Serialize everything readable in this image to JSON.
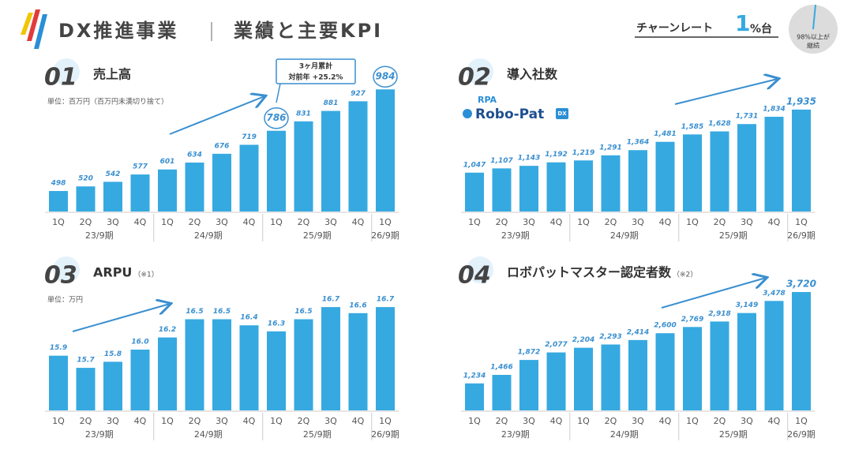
{
  "header": {
    "title": "DX推進事業",
    "subtitle": "業績と主要KPI"
  },
  "churn": {
    "label": "チャーンレート",
    "value": 1,
    "unit": "%台",
    "note": [
      "98%以上が",
      "継続"
    ]
  },
  "logo": {
    "top": "RPA",
    "name": "Robo-Pat",
    "badge": "DX"
  },
  "chart_data": [
    {
      "type": "bar",
      "number": "01",
      "title": "売上高",
      "note": "単位：百万円（百万円未満切り捨て）",
      "callout": [
        "3ヶ月累計",
        "対前年 +25.2%"
      ],
      "categories": [
        "1Q",
        "2Q",
        "3Q",
        "4Q",
        "1Q",
        "2Q",
        "3Q",
        "4Q",
        "1Q",
        "2Q",
        "3Q",
        "4Q",
        "1Q"
      ],
      "groups": [
        "23/9期",
        "24/9期",
        "25/9期",
        "26/9期"
      ],
      "values": [
        498,
        520,
        542,
        577,
        601,
        634,
        676,
        719,
        786,
        831,
        881,
        927,
        984
      ],
      "ylim": [
        400,
        1000
      ],
      "color": "#36a9e1"
    },
    {
      "type": "bar",
      "number": "02",
      "title": "導入社数",
      "categories": [
        "1Q",
        "2Q",
        "3Q",
        "4Q",
        "1Q",
        "2Q",
        "3Q",
        "4Q",
        "1Q",
        "2Q",
        "3Q",
        "4Q",
        "1Q"
      ],
      "groups": [
        "23/9期",
        "24/9期",
        "25/9期",
        "26/9期"
      ],
      "values": [
        1047,
        1107,
        1143,
        1192,
        1219,
        1291,
        1364,
        1481,
        1585,
        1628,
        1731,
        1834,
        1935
      ],
      "value_labels": [
        "1,047",
        "1,107",
        "1,143",
        "1,192",
        "1,219",
        "1,291",
        "1,364",
        "1,481",
        "1,585",
        "1,628",
        "1,731",
        "1,834",
        "1,935"
      ],
      "ylim": [
        500,
        2000
      ],
      "color": "#36a9e1"
    },
    {
      "type": "bar",
      "number": "03",
      "title": "ARPU",
      "footnote": "（※1）",
      "note": "単位：万円",
      "categories": [
        "1Q",
        "2Q",
        "3Q",
        "4Q",
        "1Q",
        "2Q",
        "3Q",
        "4Q",
        "1Q",
        "2Q",
        "3Q",
        "4Q",
        "1Q"
      ],
      "groups": [
        "23/9期",
        "24/9期",
        "25/9期",
        "26/9期"
      ],
      "values": [
        15.9,
        15.7,
        15.8,
        16.0,
        16.2,
        16.5,
        16.5,
        16.4,
        16.3,
        16.5,
        16.7,
        16.6,
        16.7
      ],
      "value_labels": [
        "15.9",
        "15.7",
        "15.8",
        "16.0",
        "16.2",
        "16.5",
        "16.5",
        "16.4",
        "16.3",
        "16.5",
        "16.7",
        "16.6",
        "16.7"
      ],
      "ylim": [
        15,
        17
      ],
      "color": "#36a9e1"
    },
    {
      "type": "bar",
      "number": "04",
      "title": "ロボパットマスター認定者数",
      "footnote": "（※2）",
      "categories": [
        "1Q",
        "2Q",
        "3Q",
        "4Q",
        "1Q",
        "2Q",
        "3Q",
        "4Q",
        "1Q",
        "2Q",
        "3Q",
        "4Q",
        "1Q"
      ],
      "groups": [
        "23/9期",
        "24/9期",
        "25/9期",
        "26/9期"
      ],
      "values": [
        1234,
        1466,
        1872,
        2077,
        2204,
        2293,
        2414,
        2600,
        2769,
        2918,
        3149,
        3478,
        3720
      ],
      "value_labels": [
        "1,234",
        "1,466",
        "1,872",
        "2,077",
        "2,204",
        "2,293",
        "2,414",
        "2,600",
        "2,769",
        "2,918",
        "3,149",
        "3,478",
        "3,720"
      ],
      "ylim": [
        500,
        4000
      ],
      "color": "#36a9e1"
    }
  ]
}
